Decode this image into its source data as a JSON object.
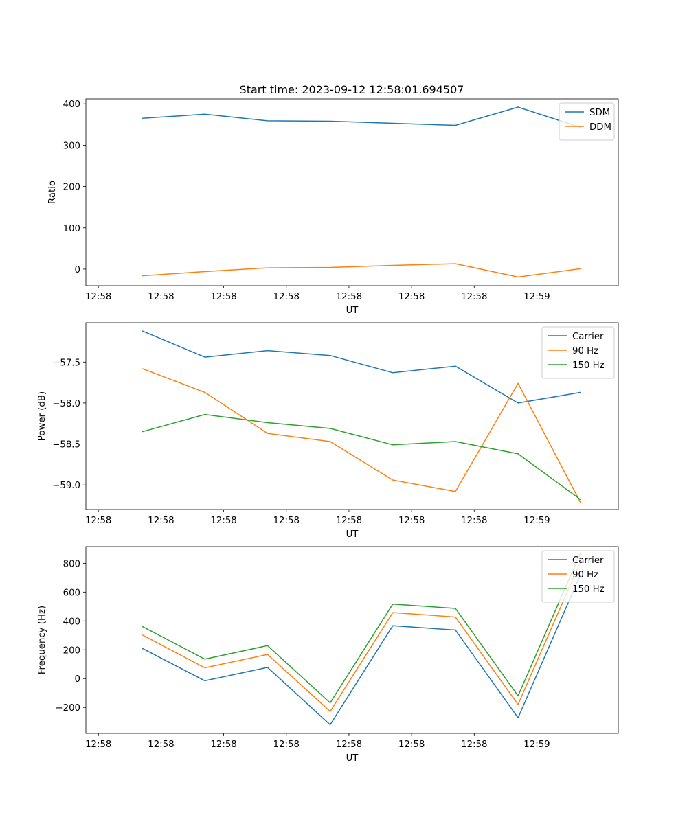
{
  "title": "Start time: 2023-09-12 12:58:01.694507",
  "chart_data": [
    {
      "type": "line",
      "xlabel": "UT",
      "ylabel": "Ratio",
      "x_tick_labels": [
        "12:58",
        "12:58",
        "12:58",
        "12:58",
        "12:58",
        "12:58",
        "12:58"
      ],
      "x_end_tick_label": "12:59",
      "ylim": [
        -40,
        412
      ],
      "yticks": [
        0,
        100,
        200,
        300,
        400
      ],
      "ytick_labels": [
        "0",
        "100",
        "200",
        "300",
        "400"
      ],
      "legend_position": "top-right",
      "x": [
        1.7,
        2.7,
        3.7,
        4.7,
        5.7,
        6.7,
        7.7,
        8.7
      ],
      "series": [
        {
          "name": "SDM",
          "color": "#1f77b4",
          "values": [
            365,
            375,
            359,
            358,
            353,
            348,
            392,
            343
          ]
        },
        {
          "name": "DDM",
          "color": "#ff7f0e",
          "values": [
            -16,
            -6,
            3,
            4,
            9,
            13,
            -19,
            1
          ]
        }
      ]
    },
    {
      "type": "line",
      "xlabel": "UT",
      "ylabel": "Power (dB)",
      "x_tick_labels": [
        "12:58",
        "12:58",
        "12:58",
        "12:58",
        "12:58",
        "12:58",
        "12:58"
      ],
      "x_end_tick_label": "12:59",
      "ylim": [
        -59.3,
        -57.02
      ],
      "yticks": [
        -59.0,
        -58.5,
        -58.0,
        -57.5
      ],
      "ytick_labels": [
        "−59.0",
        "−58.5",
        "−58.0",
        "−57.5"
      ],
      "legend_position": "top-right",
      "x": [
        1.7,
        2.7,
        3.7,
        4.7,
        5.7,
        6.7,
        7.7,
        8.7
      ],
      "series": [
        {
          "name": "Carrier",
          "color": "#1f77b4",
          "values": [
            -57.12,
            -57.44,
            -57.36,
            -57.42,
            -57.63,
            -57.55,
            -58.0,
            -57.87
          ]
        },
        {
          "name": "90 Hz",
          "color": "#ff7f0e",
          "values": [
            -57.58,
            -57.87,
            -58.37,
            -58.47,
            -58.94,
            -59.08,
            -57.76,
            -59.22
          ]
        },
        {
          "name": "150 Hz",
          "color": "#2ca02c",
          "values": [
            -58.35,
            -58.14,
            -58.24,
            -58.31,
            -58.51,
            -58.47,
            -58.62,
            -59.18
          ]
        }
      ]
    },
    {
      "type": "line",
      "xlabel": "UT",
      "ylabel": "Frequency (Hz)",
      "x_tick_labels": [
        "12:58",
        "12:58",
        "12:58",
        "12:58",
        "12:58",
        "12:58",
        "12:58"
      ],
      "x_end_tick_label": "12:59",
      "ylim": [
        -380,
        916
      ],
      "yticks": [
        -200,
        0,
        200,
        400,
        600,
        800
      ],
      "ytick_labels": [
        "−200",
        "0",
        "200",
        "400",
        "600",
        "800"
      ],
      "legend_position": "top-right",
      "x": [
        1.7,
        2.7,
        3.7,
        4.7,
        5.7,
        6.7,
        7.7,
        8.7
      ],
      "series": [
        {
          "name": "Carrier",
          "color": "#1f77b4",
          "values": [
            210,
            -15,
            78,
            -320,
            367,
            337,
            -272,
            725
          ]
        },
        {
          "name": "90 Hz",
          "color": "#ff7f0e",
          "values": [
            303,
            75,
            168,
            -228,
            458,
            427,
            -180,
            815
          ]
        },
        {
          "name": "150 Hz",
          "color": "#2ca02c",
          "values": [
            362,
            135,
            229,
            -168,
            517,
            487,
            -120,
            875
          ]
        }
      ]
    }
  ]
}
